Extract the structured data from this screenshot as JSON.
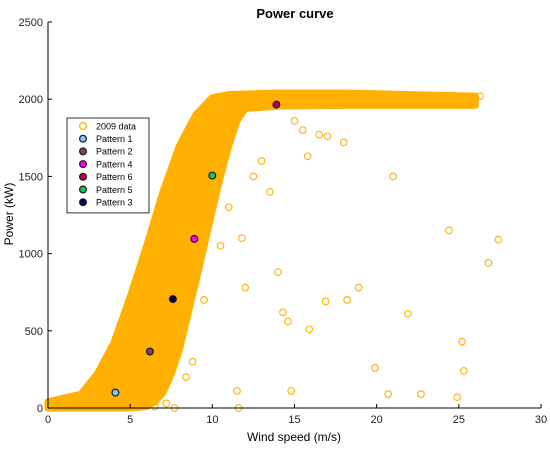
{
  "colors": {
    "scatter": "#FFB000",
    "axis": "#000000",
    "background": "#ffffff"
  },
  "chart_data": {
    "type": "scatter",
    "title": "Power curve",
    "xlabel": "Wind speed (m/s)",
    "ylabel": "Power (kW)",
    "xlim": [
      0,
      30
    ],
    "ylim": [
      0,
      2500
    ],
    "xticks": [
      0,
      5,
      10,
      15,
      20,
      25,
      30
    ],
    "yticks": [
      0,
      500,
      1000,
      1500,
      2000,
      2500
    ],
    "grid": false,
    "legend_position": "upper-left",
    "legend": [
      {
        "label": "2009 data",
        "marker": "open-circle",
        "color": "#FFB000"
      },
      {
        "label": "Pattern 1",
        "marker": "filled-circle",
        "color": "#7CC8FF"
      },
      {
        "label": "Pattern 2",
        "marker": "filled-circle",
        "color": "#8B3A62"
      },
      {
        "label": "Pattern 4",
        "marker": "filled-circle",
        "color": "#FF00FF"
      },
      {
        "label": "Pattern 6",
        "marker": "filled-circle",
        "color": "#C0004A"
      },
      {
        "label": "Pattern 5",
        "marker": "filled-circle",
        "color": "#20C060"
      },
      {
        "label": "Pattern 3",
        "marker": "filled-circle",
        "color": "#000050"
      }
    ],
    "series": [
      {
        "name": "2009 data",
        "color": "#FFB000",
        "points": [
          {
            "x": 0.3,
            "y": 0
          },
          {
            "x": 0.8,
            "y": 10
          },
          {
            "x": 1.2,
            "y": 20
          },
          {
            "x": 1.6,
            "y": 40
          },
          {
            "x": 2.0,
            "y": 40
          },
          {
            "x": 2.3,
            "y": 120
          },
          {
            "x": 2.7,
            "y": 60
          },
          {
            "x": 3.2,
            "y": 40
          },
          {
            "x": 3.5,
            "y": 10
          },
          {
            "x": 3.8,
            "y": 90
          },
          {
            "x": 4.2,
            "y": 160
          },
          {
            "x": 4.5,
            "y": 220
          },
          {
            "x": 4.8,
            "y": 330
          },
          {
            "x": 5.2,
            "y": 180
          },
          {
            "x": 5.5,
            "y": 420
          },
          {
            "x": 5.9,
            "y": 360
          },
          {
            "x": 6.2,
            "y": 480
          },
          {
            "x": 6.6,
            "y": 650
          },
          {
            "x": 7.0,
            "y": 520
          },
          {
            "x": 7.4,
            "y": 800
          },
          {
            "x": 7.8,
            "y": 900
          },
          {
            "x": 8.1,
            "y": 1050
          },
          {
            "x": 8.5,
            "y": 1180
          },
          {
            "x": 9.0,
            "y": 1300
          },
          {
            "x": 9.4,
            "y": 1450
          },
          {
            "x": 9.8,
            "y": 1600
          },
          {
            "x": 10.2,
            "y": 1750
          },
          {
            "x": 10.6,
            "y": 1880
          },
          {
            "x": 11.0,
            "y": 1960
          },
          {
            "x": 11.5,
            "y": 1990
          },
          {
            "x": 12.0,
            "y": 2000
          },
          {
            "x": 13.0,
            "y": 2000
          },
          {
            "x": 14.0,
            "y": 2000
          },
          {
            "x": 15.0,
            "y": 2010
          },
          {
            "x": 16.0,
            "y": 2000
          },
          {
            "x": 17.0,
            "y": 1990
          },
          {
            "x": 18.0,
            "y": 2000
          },
          {
            "x": 19.0,
            "y": 2010
          },
          {
            "x": 20.0,
            "y": 2000
          },
          {
            "x": 21.0,
            "y": 1990
          },
          {
            "x": 22.0,
            "y": 2000
          },
          {
            "x": 23.0,
            "y": 2000
          },
          {
            "x": 24.0,
            "y": 1995
          },
          {
            "x": 25.0,
            "y": 2000
          },
          {
            "x": 26.0,
            "y": 2010
          },
          {
            "x": 26.3,
            "y": 2020
          },
          {
            "x": 6.5,
            "y": 10
          },
          {
            "x": 7.2,
            "y": 30
          },
          {
            "x": 7.7,
            "y": 0
          },
          {
            "x": 8.4,
            "y": 200
          },
          {
            "x": 8.8,
            "y": 300
          },
          {
            "x": 9.5,
            "y": 700
          },
          {
            "x": 10.5,
            "y": 1050
          },
          {
            "x": 11.0,
            "y": 1300
          },
          {
            "x": 11.5,
            "y": 110
          },
          {
            "x": 11.8,
            "y": 1100
          },
          {
            "x": 12.0,
            "y": 780
          },
          {
            "x": 12.5,
            "y": 1500
          },
          {
            "x": 13.0,
            "y": 1600
          },
          {
            "x": 13.5,
            "y": 1400
          },
          {
            "x": 14.0,
            "y": 880
          },
          {
            "x": 14.3,
            "y": 620
          },
          {
            "x": 14.6,
            "y": 560
          },
          {
            "x": 14.8,
            "y": 110
          },
          {
            "x": 15.0,
            "y": 1860
          },
          {
            "x": 15.5,
            "y": 1800
          },
          {
            "x": 15.8,
            "y": 1630
          },
          {
            "x": 15.9,
            "y": 510
          },
          {
            "x": 16.5,
            "y": 1770
          },
          {
            "x": 16.9,
            "y": 690
          },
          {
            "x": 17.0,
            "y": 1760
          },
          {
            "x": 18.0,
            "y": 1720
          },
          {
            "x": 18.2,
            "y": 700
          },
          {
            "x": 18.9,
            "y": 780
          },
          {
            "x": 19.9,
            "y": 260
          },
          {
            "x": 20.7,
            "y": 90
          },
          {
            "x": 21.0,
            "y": 1500
          },
          {
            "x": 21.9,
            "y": 610
          },
          {
            "x": 22.7,
            "y": 90
          },
          {
            "x": 24.4,
            "y": 1150
          },
          {
            "x": 24.9,
            "y": 70
          },
          {
            "x": 25.2,
            "y": 430
          },
          {
            "x": 25.3,
            "y": 240
          },
          {
            "x": 26.8,
            "y": 940
          },
          {
            "x": 27.4,
            "y": 1090
          },
          {
            "x": 11.6,
            "y": 0
          },
          {
            "x": 5.0,
            "y": 650
          },
          {
            "x": 4.0,
            "y": 300
          },
          {
            "x": 3.0,
            "y": 200
          }
        ]
      },
      {
        "name": "Pattern 1",
        "color": "#7CC8FF",
        "points": [
          {
            "x": 4.1,
            "y": 100
          }
        ]
      },
      {
        "name": "Pattern 2",
        "color": "#8B3A62",
        "points": [
          {
            "x": 6.2,
            "y": 365
          }
        ]
      },
      {
        "name": "Pattern 3",
        "color": "#000050",
        "points": [
          {
            "x": 7.6,
            "y": 705
          }
        ]
      },
      {
        "name": "Pattern 4",
        "color": "#FF00FF",
        "points": [
          {
            "x": 8.9,
            "y": 1095
          }
        ]
      },
      {
        "name": "Pattern 5",
        "color": "#20C060",
        "points": [
          {
            "x": 10.0,
            "y": 1505
          }
        ]
      },
      {
        "name": "Pattern 6",
        "color": "#C0004A",
        "points": [
          {
            "x": 13.9,
            "y": 1965
          }
        ]
      }
    ]
  }
}
